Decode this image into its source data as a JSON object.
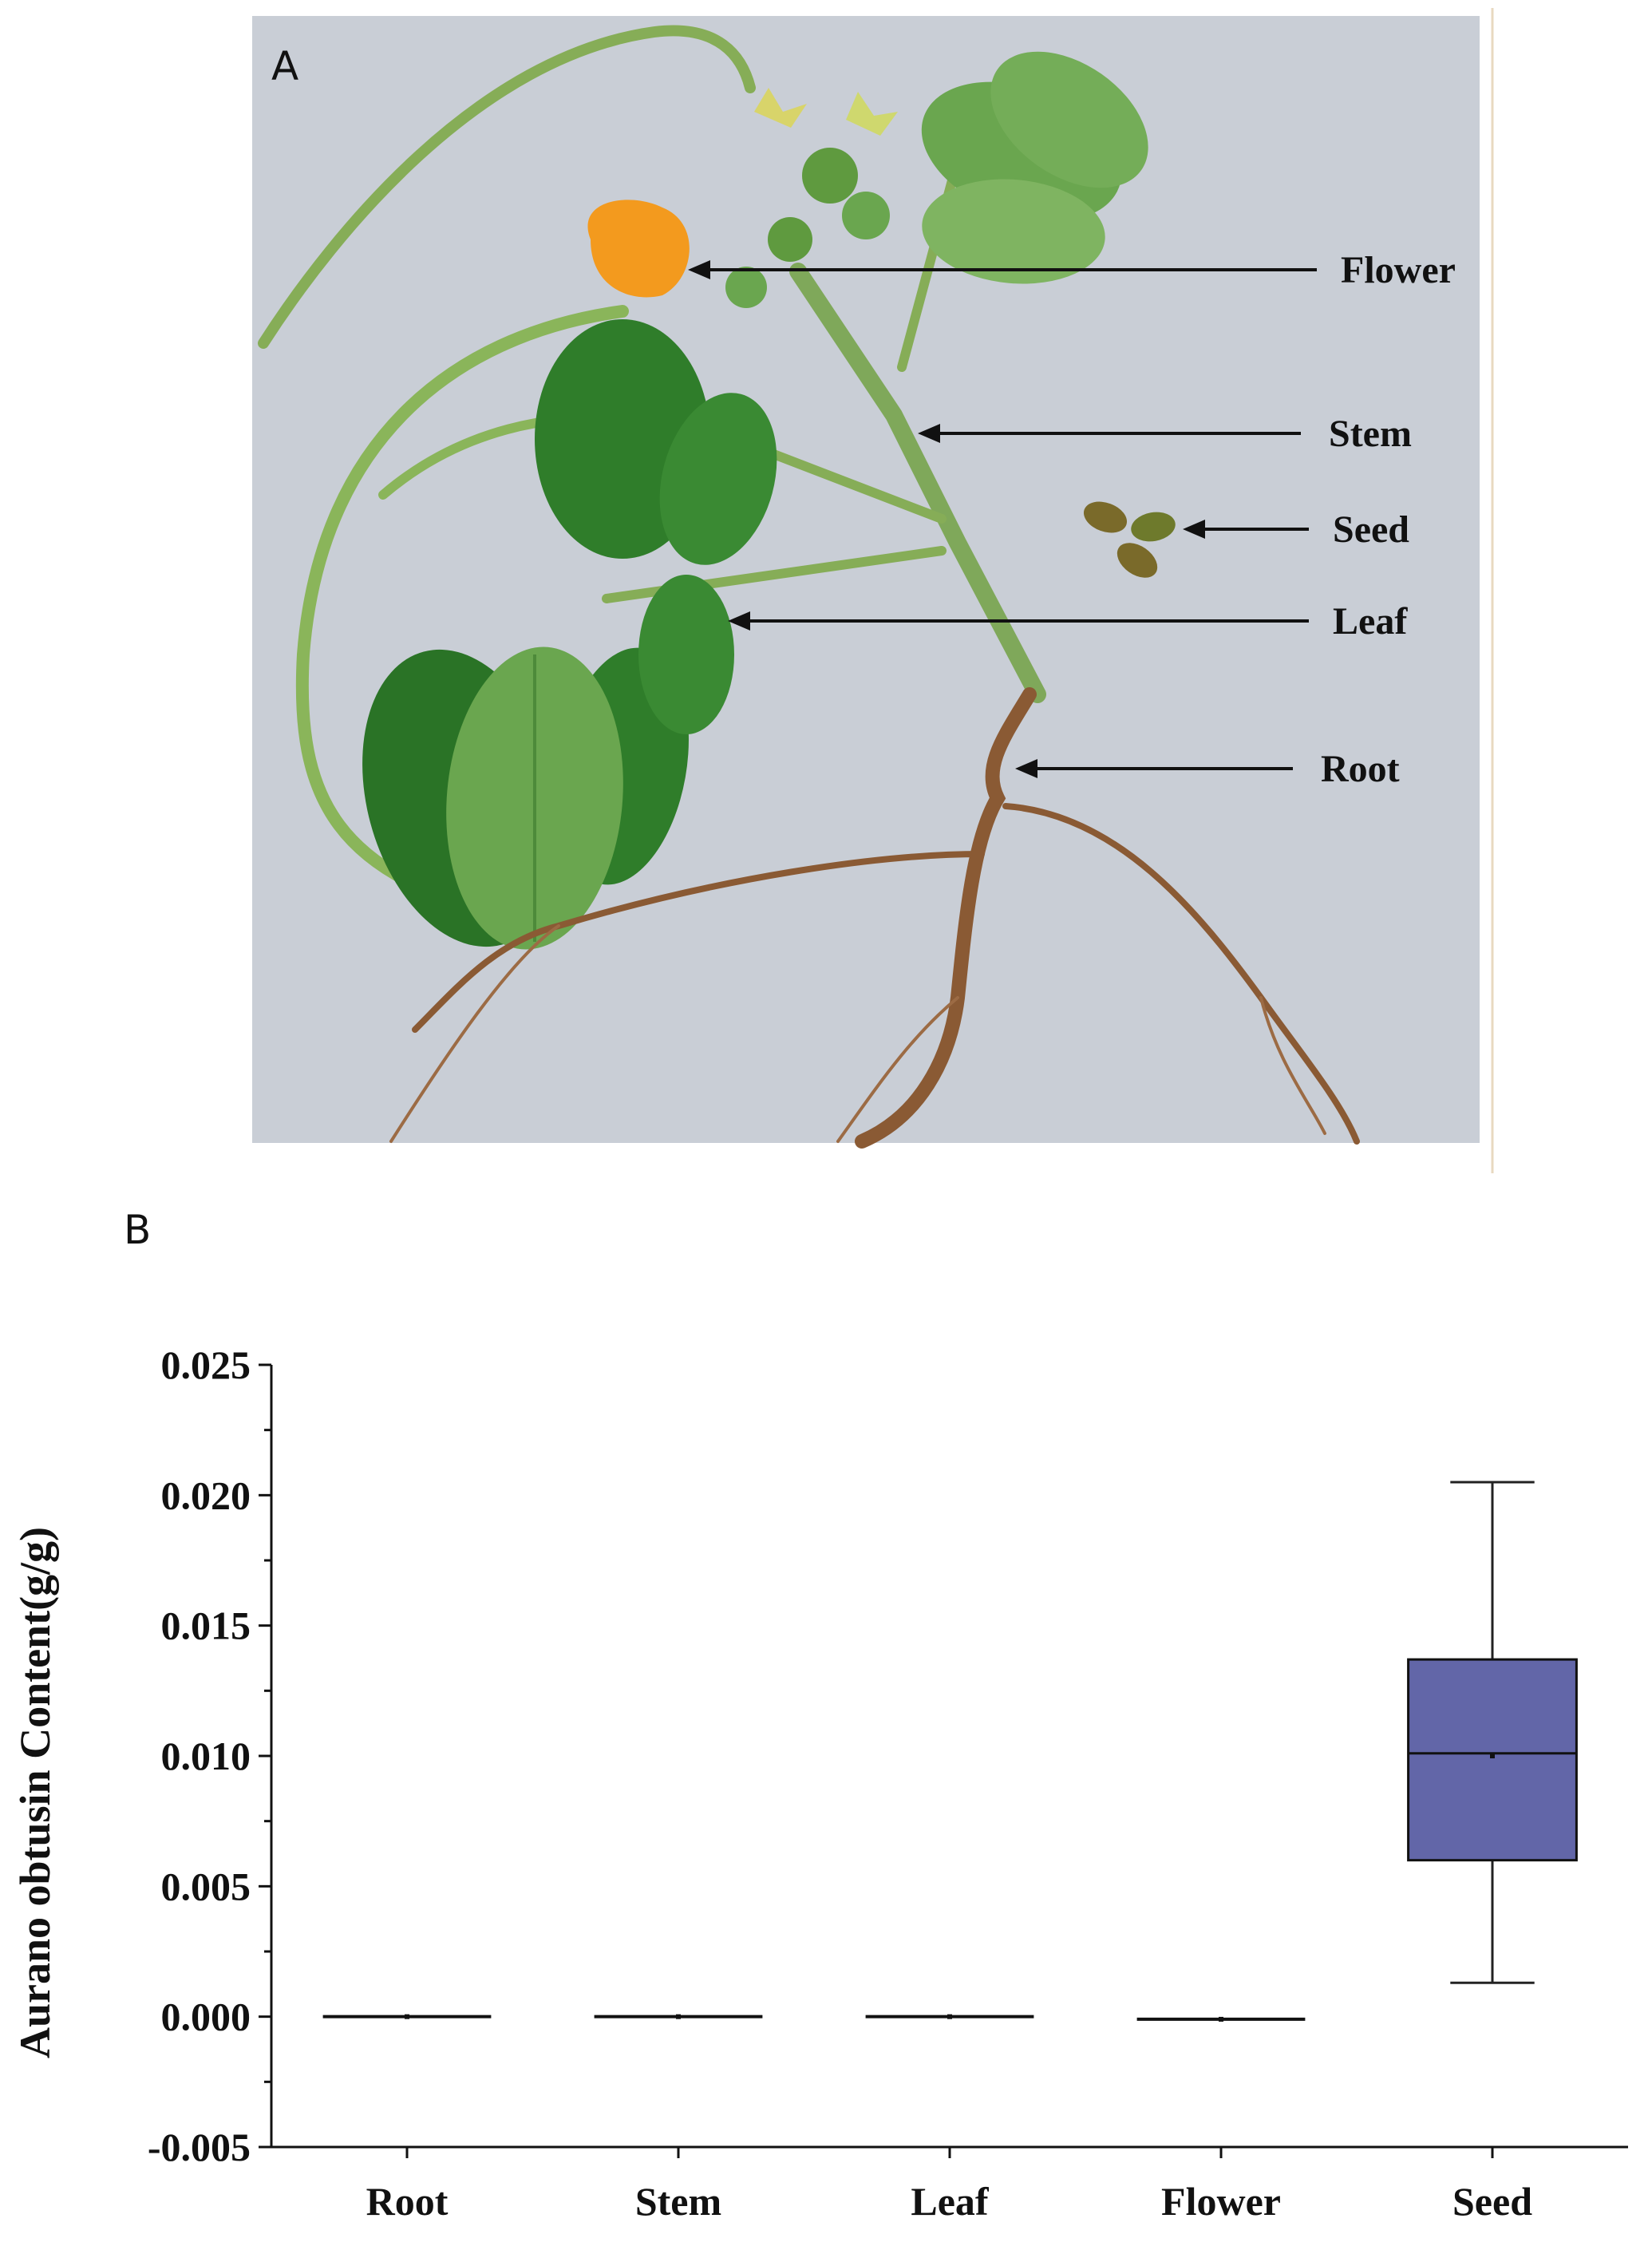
{
  "figure": {
    "panel_a_label": "A",
    "panel_b_label": "B",
    "callouts": [
      {
        "key": "flower",
        "text": "Flower"
      },
      {
        "key": "stem",
        "text": "Stem"
      },
      {
        "key": "seed",
        "text": "Seed"
      },
      {
        "key": "leaf",
        "text": "Leaf"
      },
      {
        "key": "root",
        "text": "Root"
      }
    ],
    "colors": {
      "photo_background": "#c9ced6",
      "leaf_dark": "#2f7d2a",
      "leaf_light": "#6aa64f",
      "stem": "#7fa85a",
      "flower": "#f39a1e",
      "root": "#8a5a34",
      "seed": "#7a6a2a"
    }
  },
  "chart_data": {
    "type": "box",
    "title": "",
    "xlabel": "",
    "ylabel": "Aurano obtusin Content(g/g)",
    "ylim": [
      -0.005,
      0.025
    ],
    "yticks": [
      -0.005,
      0.0,
      0.005,
      0.01,
      0.015,
      0.02,
      0.025
    ],
    "ytick_labels": [
      "-0.005",
      "0.000",
      "0.005",
      "0.010",
      "0.015",
      "0.020",
      "0.025"
    ],
    "categories": [
      "Root",
      "Stem",
      "Leaf",
      "Flower",
      "Seed"
    ],
    "boxes": [
      {
        "category": "Root",
        "min": 0.0,
        "q1": 0.0,
        "median": 0.0,
        "mean": 0.0,
        "q3": 0.0,
        "max": 0.0
      },
      {
        "category": "Stem",
        "min": 0.0,
        "q1": 0.0,
        "median": 0.0,
        "mean": 0.0,
        "q3": 0.0,
        "max": 0.0
      },
      {
        "category": "Leaf",
        "min": 0.0,
        "q1": 0.0,
        "median": 0.0,
        "mean": 0.0,
        "q3": 0.0,
        "max": 0.0
      },
      {
        "category": "Flower",
        "min": -0.0001,
        "q1": -0.0001,
        "median": -0.0001,
        "mean": -0.0001,
        "q3": -0.0001,
        "max": -0.0001
      },
      {
        "category": "Seed",
        "min": 0.0013,
        "q1": 0.006,
        "median": 0.0101,
        "mean": 0.01,
        "q3": 0.0137,
        "max": 0.0205
      }
    ],
    "box_color": "#6266a8",
    "grid": false,
    "legend": "none"
  }
}
